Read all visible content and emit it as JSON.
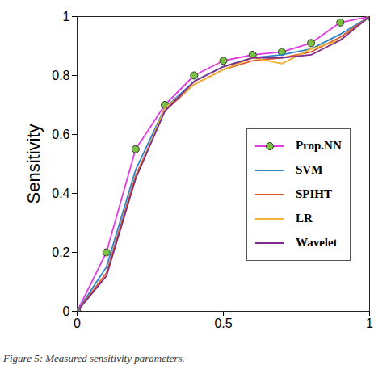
{
  "chart_data": {
    "type": "line",
    "y_label": "Sensitivity",
    "caption": "Figure 5: Measured sensitivity parameters.",
    "x": [
      0,
      0.1,
      0.2,
      0.3,
      0.4,
      0.5,
      0.6,
      0.7,
      0.8,
      0.9,
      1
    ],
    "series": [
      {
        "name": "Prop.NN",
        "color": "#e23be2",
        "marker": "circle",
        "values": [
          0,
          0.2,
          0.55,
          0.7,
          0.8,
          0.85,
          0.87,
          0.88,
          0.91,
          0.98,
          1
        ]
      },
      {
        "name": "SVM",
        "color": "#2e86c8",
        "values": [
          0,
          0.15,
          0.48,
          0.69,
          0.78,
          0.83,
          0.86,
          0.87,
          0.89,
          0.94,
          1
        ]
      },
      {
        "name": "SPIHT",
        "color": "#e0582a",
        "values": [
          0,
          0.13,
          0.46,
          0.68,
          0.77,
          0.82,
          0.85,
          0.86,
          0.88,
          0.93,
          1
        ]
      },
      {
        "name": "LR",
        "color": "#f2b233",
        "values": [
          0,
          0.12,
          0.45,
          0.69,
          0.77,
          0.82,
          0.86,
          0.84,
          0.89,
          0.92,
          1
        ]
      },
      {
        "name": "Wavelet",
        "color": "#7b2c8c",
        "values": [
          0,
          0.12,
          0.45,
          0.68,
          0.78,
          0.83,
          0.86,
          0.86,
          0.87,
          0.92,
          1
        ]
      }
    ],
    "xlim": [
      0,
      1
    ],
    "xticks": [
      0,
      0.5,
      1
    ],
    "ylim": [
      0,
      1
    ],
    "yticks": [
      0,
      0.2,
      0.4,
      0.6,
      0.8,
      1
    ],
    "grid": false,
    "legend": "right"
  }
}
